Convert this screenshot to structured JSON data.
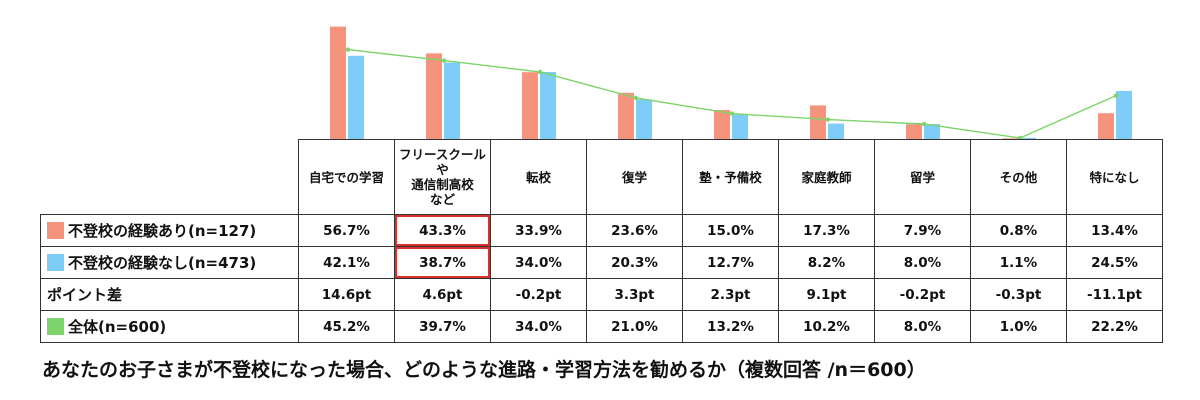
{
  "chart_data": {
    "type": "bar",
    "categories": [
      "自宅での学習",
      "フリースクール\nや\n通信制高校\nなど",
      "転校",
      "復学",
      "塾・予備校",
      "家庭教師",
      "留学",
      "その他",
      "特になし"
    ],
    "series": [
      {
        "name": "不登校の経験あり(n=127)",
        "color": "#f5937c",
        "values": [
          56.7,
          43.3,
          33.9,
          23.6,
          15.0,
          17.3,
          7.9,
          0.8,
          13.4
        ],
        "labels": [
          "56.7%",
          "43.3%",
          "33.9%",
          "23.6%",
          "15.0%",
          "17.3%",
          "7.9%",
          "0.8%",
          "13.4%"
        ]
      },
      {
        "name": "不登校の経験なし(n=473)",
        "color": "#7ecdf7",
        "values": [
          42.1,
          38.7,
          34.0,
          20.3,
          12.7,
          8.2,
          8.0,
          1.1,
          24.5
        ],
        "labels": [
          "42.1%",
          "38.7%",
          "34.0%",
          "20.3%",
          "12.7%",
          "8.2%",
          "8.0%",
          "1.1%",
          "24.5%"
        ]
      },
      {
        "name": "全体(n=600)",
        "type": "line",
        "color": "#7cd46a",
        "values": [
          45.2,
          39.7,
          34.0,
          21.0,
          13.2,
          10.2,
          8.0,
          1.0,
          22.2
        ],
        "labels": [
          "45.2%",
          "39.7%",
          "34.0%",
          "21.0%",
          "13.2%",
          "10.2%",
          "8.0%",
          "1.0%",
          "22.2%"
        ]
      }
    ],
    "point_diff": {
      "name": "ポイント差",
      "values": [
        "14.6pt",
        "4.6pt",
        "-0.2pt",
        "3.3pt",
        "2.3pt",
        "9.1pt",
        "-0.2pt",
        "-0.3pt",
        "-11.1pt"
      ]
    },
    "highlighted_category": "フリースクール\nや\n通信制高校\nなど",
    "ylim": [
      0,
      60
    ],
    "grid": false,
    "title": "あなたのお子さまが不登校になった場合、どのような進路・学習方法を勧めるか（複数回答 /n＝600）"
  }
}
